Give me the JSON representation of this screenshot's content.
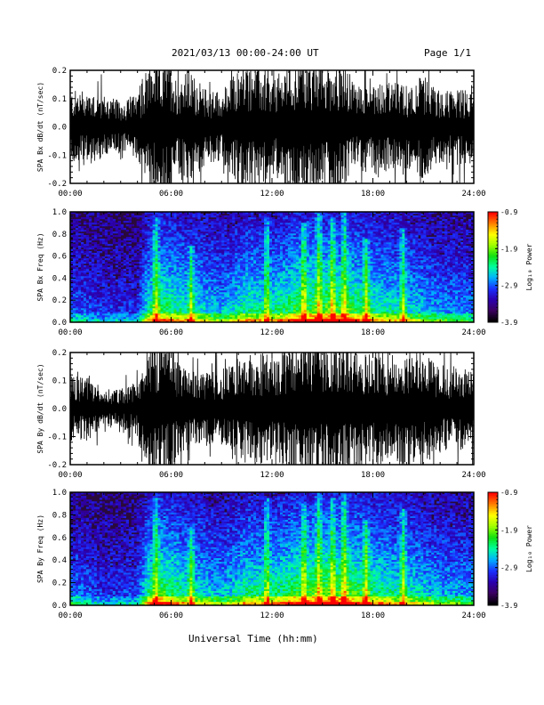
{
  "header": {
    "title": "2021/03/13  00:00-24:00 UT",
    "page": "Page 1/1"
  },
  "x_axis_title": "Universal Time (hh:mm)",
  "colors": {
    "trace": "#000000",
    "spectrogram_background": "#2a0a3a",
    "colormap": [
      "#000000",
      "#3b0060",
      "#2b00b0",
      "#1a30ff",
      "#00b0ff",
      "#00ffa0",
      "#10e010",
      "#a0ff00",
      "#ffff00",
      "#ff8000",
      "#ff0000"
    ]
  },
  "chart_data": [
    {
      "type": "line",
      "ylabel": "SPA Bx dB/dt (nT/sec)",
      "xlim": [
        0,
        24
      ],
      "ylim": [
        -0.2,
        0.2
      ],
      "x_ticks": [
        "00:00",
        "06:00",
        "12:00",
        "18:00",
        "24:00"
      ],
      "y_ticks": [
        "0.2",
        "0.1",
        "0.0",
        "-0.1",
        "-0.2"
      ],
      "activity": [
        {
          "x": 0,
          "amp": 0.11
        },
        {
          "x": 1,
          "amp": 0.12
        },
        {
          "x": 2,
          "amp": 0.1
        },
        {
          "x": 3,
          "amp": 0.08
        },
        {
          "x": 4,
          "amp": 0.1
        },
        {
          "x": 4.5,
          "amp": 0.16
        },
        {
          "x": 5,
          "amp": 0.22
        },
        {
          "x": 6,
          "amp": 0.22
        },
        {
          "x": 6.3,
          "amp": 0.15
        },
        {
          "x": 7,
          "amp": 0.18
        },
        {
          "x": 8,
          "amp": 0.12
        },
        {
          "x": 9,
          "amp": 0.11
        },
        {
          "x": 10,
          "amp": 0.18
        },
        {
          "x": 11,
          "amp": 0.2
        },
        {
          "x": 12,
          "amp": 0.14
        },
        {
          "x": 13,
          "amp": 0.2
        },
        {
          "x": 14,
          "amp": 0.22
        },
        {
          "x": 15,
          "amp": 0.2
        },
        {
          "x": 16,
          "amp": 0.22
        },
        {
          "x": 17,
          "amp": 0.13
        },
        {
          "x": 18,
          "amp": 0.15
        },
        {
          "x": 19,
          "amp": 0.14
        },
        {
          "x": 20,
          "amp": 0.13
        },
        {
          "x": 21,
          "amp": 0.16
        },
        {
          "x": 22,
          "amp": 0.11
        },
        {
          "x": 23,
          "amp": 0.12
        },
        {
          "x": 24,
          "amp": 0.11
        }
      ]
    },
    {
      "type": "heatmap",
      "ylabel": "SPA Bx Freq (Hz)",
      "xlim": [
        0,
        24
      ],
      "ylim": [
        0.0,
        1.0
      ],
      "x_ticks": [
        "00:00",
        "06:00",
        "12:00",
        "18:00",
        "24:00"
      ],
      "y_ticks": [
        "1.0",
        "0.8",
        "0.6",
        "0.4",
        "0.2",
        "0.0"
      ],
      "colorbar": {
        "label": "Log₁₀ Power",
        "range": [
          -3.9,
          -0.9
        ],
        "ticks": [
          "-0.9",
          "-1.9",
          "-2.9",
          "-3.9"
        ]
      },
      "activity": [
        {
          "x": 0,
          "a": 0.45
        },
        {
          "x": 2,
          "a": 0.35
        },
        {
          "x": 4,
          "a": 0.35
        },
        {
          "x": 4.7,
          "a": 0.8
        },
        {
          "x": 5.5,
          "a": 0.9
        },
        {
          "x": 7,
          "a": 0.75
        },
        {
          "x": 9,
          "a": 0.6
        },
        {
          "x": 10.5,
          "a": 0.8
        },
        {
          "x": 12,
          "a": 0.75
        },
        {
          "x": 13.5,
          "a": 0.95
        },
        {
          "x": 15,
          "a": 1.0
        },
        {
          "x": 16.5,
          "a": 0.95
        },
        {
          "x": 18,
          "a": 0.8
        },
        {
          "x": 20,
          "a": 0.7
        },
        {
          "x": 22,
          "a": 0.55
        },
        {
          "x": 24,
          "a": 0.5
        }
      ],
      "peaks": [
        {
          "x": 5.1,
          "f": 0.95
        },
        {
          "x": 7.2,
          "f": 0.7
        },
        {
          "x": 11.7,
          "f": 0.95
        },
        {
          "x": 13.9,
          "f": 0.9
        },
        {
          "x": 14.8,
          "f": 1.0
        },
        {
          "x": 15.6,
          "f": 0.95
        },
        {
          "x": 16.3,
          "f": 1.0
        },
        {
          "x": 17.6,
          "f": 0.75
        },
        {
          "x": 19.8,
          "f": 0.85
        }
      ]
    },
    {
      "type": "line",
      "ylabel": "SPA By dB/dt (nT/sec)",
      "xlim": [
        0,
        24
      ],
      "ylim": [
        -0.2,
        0.2
      ],
      "x_ticks": [
        "00:00",
        "06:00",
        "12:00",
        "18:00",
        "24:00"
      ],
      "y_ticks": [
        "0.2",
        "0.1",
        "0.0",
        "-0.1",
        "-0.2"
      ],
      "activity": [
        {
          "x": 0,
          "amp": 0.1
        },
        {
          "x": 1,
          "amp": 0.1
        },
        {
          "x": 2,
          "amp": 0.06
        },
        {
          "x": 3,
          "amp": 0.06
        },
        {
          "x": 4,
          "amp": 0.09
        },
        {
          "x": 4.5,
          "amp": 0.18
        },
        {
          "x": 5,
          "amp": 0.22
        },
        {
          "x": 6,
          "amp": 0.22
        },
        {
          "x": 6.5,
          "amp": 0.14
        },
        {
          "x": 7,
          "amp": 0.12
        },
        {
          "x": 8,
          "amp": 0.11
        },
        {
          "x": 9,
          "amp": 0.12
        },
        {
          "x": 10,
          "amp": 0.16
        },
        {
          "x": 11,
          "amp": 0.18
        },
        {
          "x": 12,
          "amp": 0.17
        },
        {
          "x": 13,
          "amp": 0.2
        },
        {
          "x": 14,
          "amp": 0.22
        },
        {
          "x": 15,
          "amp": 0.22
        },
        {
          "x": 16,
          "amp": 0.22
        },
        {
          "x": 17,
          "amp": 0.2
        },
        {
          "x": 18,
          "amp": 0.18
        },
        {
          "x": 19,
          "amp": 0.17
        },
        {
          "x": 20,
          "amp": 0.18
        },
        {
          "x": 21,
          "amp": 0.17
        },
        {
          "x": 22,
          "amp": 0.14
        },
        {
          "x": 23,
          "amp": 0.13
        },
        {
          "x": 24,
          "amp": 0.12
        }
      ]
    },
    {
      "type": "heatmap",
      "ylabel": "SPA By Freq (Hz)",
      "xlim": [
        0,
        24
      ],
      "ylim": [
        0.0,
        1.0
      ],
      "x_ticks": [
        "00:00",
        "06:00",
        "12:00",
        "18:00",
        "24:00"
      ],
      "y_ticks": [
        "1.0",
        "0.8",
        "0.6",
        "0.4",
        "0.2",
        "0.0"
      ],
      "colorbar": {
        "label": "Log₁₀ Power",
        "range": [
          -3.9,
          -0.9
        ],
        "ticks": [
          "-0.9",
          "-1.9",
          "-2.9",
          "-3.9"
        ]
      },
      "activity": [
        {
          "x": 0,
          "a": 0.5
        },
        {
          "x": 2,
          "a": 0.35
        },
        {
          "x": 4,
          "a": 0.4
        },
        {
          "x": 4.7,
          "a": 0.85
        },
        {
          "x": 5.5,
          "a": 0.95
        },
        {
          "x": 7,
          "a": 0.75
        },
        {
          "x": 9,
          "a": 0.6
        },
        {
          "x": 10.5,
          "a": 0.8
        },
        {
          "x": 12,
          "a": 0.8
        },
        {
          "x": 13.5,
          "a": 0.95
        },
        {
          "x": 15,
          "a": 1.0
        },
        {
          "x": 16.5,
          "a": 1.0
        },
        {
          "x": 18,
          "a": 0.85
        },
        {
          "x": 20,
          "a": 0.75
        },
        {
          "x": 22,
          "a": 0.6
        },
        {
          "x": 24,
          "a": 0.55
        }
      ],
      "peaks": [
        {
          "x": 5.1,
          "f": 0.95
        },
        {
          "x": 7.2,
          "f": 0.7
        },
        {
          "x": 11.7,
          "f": 0.95
        },
        {
          "x": 13.9,
          "f": 0.9
        },
        {
          "x": 14.8,
          "f": 1.0
        },
        {
          "x": 15.6,
          "f": 0.95
        },
        {
          "x": 16.3,
          "f": 1.0
        },
        {
          "x": 17.6,
          "f": 0.75
        },
        {
          "x": 19.8,
          "f": 0.85
        }
      ]
    }
  ]
}
